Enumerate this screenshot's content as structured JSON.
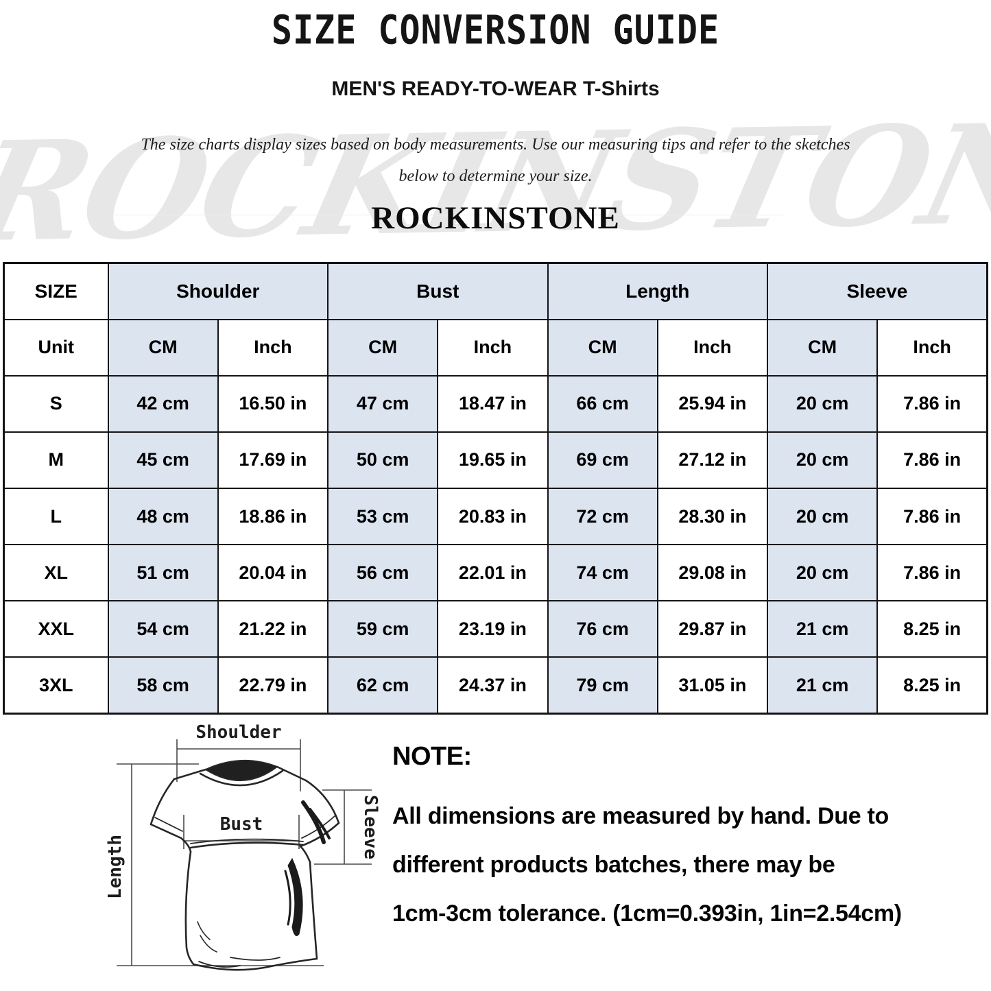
{
  "header": {
    "title": "SIZE CONVERSION GUIDE",
    "subtitle": "MEN'S READY-TO-WEAR T-Shirts",
    "description_line1": "The size charts display sizes based on body measurements. Use our measuring tips and refer to the sketches",
    "description_line2": "below to determine your size.",
    "brand": "ROCKINSTONE",
    "watermark": "ROCKINSTONE"
  },
  "table": {
    "corner_label": "SIZE",
    "group_headers": [
      "Shoulder",
      "Bust",
      "Length",
      "Sleeve"
    ],
    "unit_row": {
      "label": "Unit",
      "units": [
        "CM",
        "Inch",
        "CM",
        "Inch",
        "CM",
        "Inch",
        "CM",
        "Inch"
      ]
    },
    "rows": [
      {
        "size": "S",
        "cells": [
          "42 cm",
          "16.50 in",
          "47 cm",
          "18.47 in",
          "66 cm",
          "25.94 in",
          "20 cm",
          "7.86 in"
        ]
      },
      {
        "size": "M",
        "cells": [
          "45 cm",
          "17.69 in",
          "50 cm",
          "19.65 in",
          "69 cm",
          "27.12 in",
          "20 cm",
          "7.86 in"
        ]
      },
      {
        "size": "L",
        "cells": [
          "48 cm",
          "18.86 in",
          "53 cm",
          "20.83 in",
          "72 cm",
          "28.30 in",
          "20 cm",
          "7.86 in"
        ]
      },
      {
        "size": "XL",
        "cells": [
          "51 cm",
          "20.04 in",
          "56 cm",
          "22.01 in",
          "74 cm",
          "29.08 in",
          "20 cm",
          "7.86 in"
        ]
      },
      {
        "size": "XXL",
        "cells": [
          "54 cm",
          "21.22 in",
          "59 cm",
          "23.19 in",
          "76 cm",
          "29.87 in",
          "21 cm",
          "8.25 in"
        ]
      },
      {
        "size": "3XL",
        "cells": [
          "58 cm",
          "22.79 in",
          "62 cm",
          "24.37 in",
          "79 cm",
          "31.05 in",
          "21 cm",
          "8.25 in"
        ]
      }
    ]
  },
  "diagram": {
    "shoulder_label": "Shoulder",
    "bust_label": "Bust",
    "length_label": "Length",
    "sleeve_label": "Sleeve"
  },
  "note": {
    "heading": "NOTE:",
    "line1": "All dimensions are measured by hand. Due to",
    "line2": "different products batches, there may be",
    "line3": "1cm-3cm tolerance. (1cm=0.393in, 1in=2.54cm)"
  },
  "colors": {
    "cell_shade": "#dce4f0",
    "table_border": "#141414",
    "watermark_gray": "#e7e7e7"
  }
}
